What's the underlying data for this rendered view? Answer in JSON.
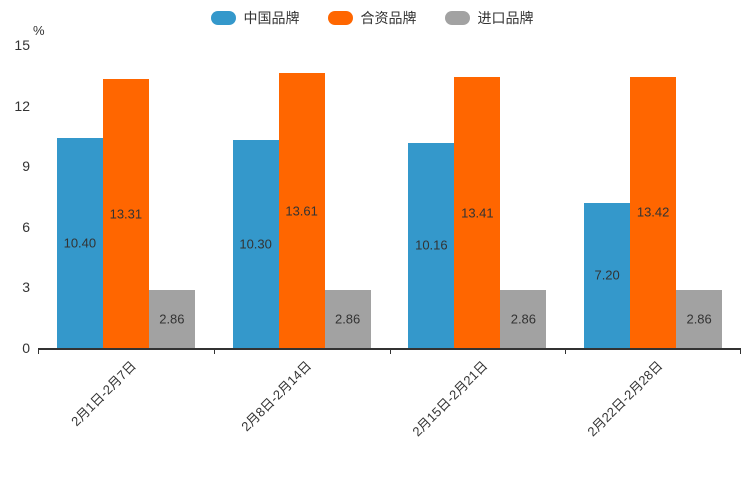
{
  "chart_data": {
    "type": "bar",
    "title": "",
    "unit_label": "%",
    "categories": [
      "2月1日-2月7日",
      "2月8日-2月14日",
      "2月15日-2月21日",
      "2月22日-2月28日"
    ],
    "series": [
      {
        "name": "中国品牌",
        "color": "#3498CB",
        "values": [
          10.4,
          10.3,
          10.16,
          7.2
        ],
        "value_labels": [
          "10.40",
          "10.30",
          "10.16",
          "7.20"
        ]
      },
      {
        "name": "合资品牌",
        "color": "#FF6600",
        "values": [
          13.31,
          13.61,
          13.41,
          13.42
        ],
        "value_labels": [
          "13.31",
          "13.61",
          "13.41",
          "13.42"
        ]
      },
      {
        "name": "进口品牌",
        "color": "#A2A2A2",
        "values": [
          2.86,
          2.86,
          2.86,
          2.86
        ],
        "value_labels": [
          "2.86",
          "2.86",
          "2.86",
          "2.86"
        ]
      }
    ],
    "yticks": [
      0,
      3,
      6,
      9,
      12,
      15
    ],
    "ylim": [
      0,
      15
    ],
    "grid": false,
    "legend_position": "top-center",
    "axis_color": "#333333",
    "text_color": "#333333"
  }
}
